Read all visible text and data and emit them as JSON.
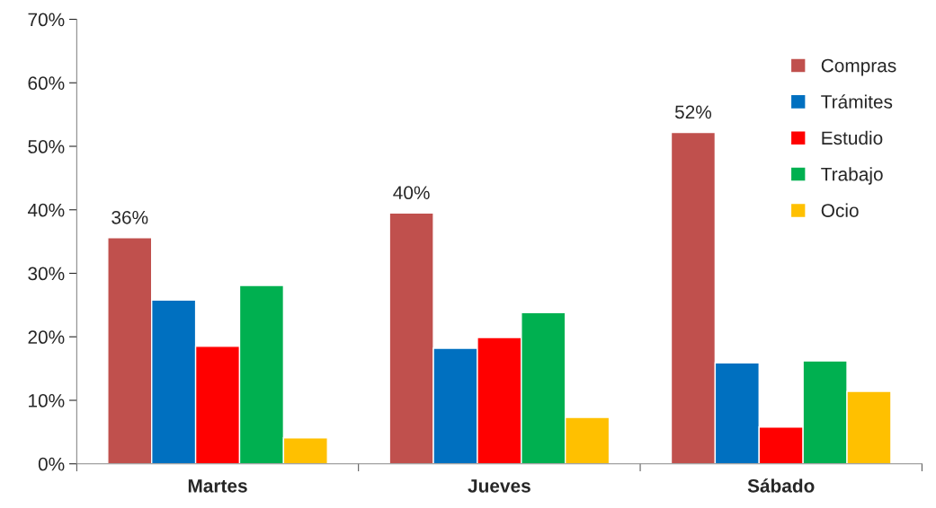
{
  "chart_data": {
    "type": "bar",
    "categories": [
      "Martes",
      "Jueves",
      "Sábado"
    ],
    "series": [
      {
        "name": "Compras",
        "color": "#c0504d",
        "values": [
          35.6,
          39.5,
          52.2
        ],
        "value_labels": [
          "36%",
          "40%",
          "52%"
        ]
      },
      {
        "name": "Trámites",
        "color": "#0070c0",
        "values": [
          25.8,
          18.2,
          15.9
        ]
      },
      {
        "name": "Estudio",
        "color": "#ff0000",
        "values": [
          18.5,
          19.9,
          5.8
        ]
      },
      {
        "name": "Trabajo",
        "color": "#00b050",
        "values": [
          28.1,
          23.8,
          16.2
        ]
      },
      {
        "name": "Ocio",
        "color": "#ffc000",
        "values": [
          4.1,
          7.3,
          11.4
        ]
      }
    ],
    "ylim": [
      0,
      70
    ],
    "yticks": [
      {
        "value": 0,
        "label": "0%"
      },
      {
        "value": 10,
        "label": "10%"
      },
      {
        "value": 20,
        "label": "20%"
      },
      {
        "value": 30,
        "label": "30%"
      },
      {
        "value": 40,
        "label": "40%"
      },
      {
        "value": 50,
        "label": "50%"
      },
      {
        "value": 60,
        "label": "60%"
      },
      {
        "value": 70,
        "label": "70%"
      }
    ],
    "grid": false,
    "legend": "top right"
  }
}
